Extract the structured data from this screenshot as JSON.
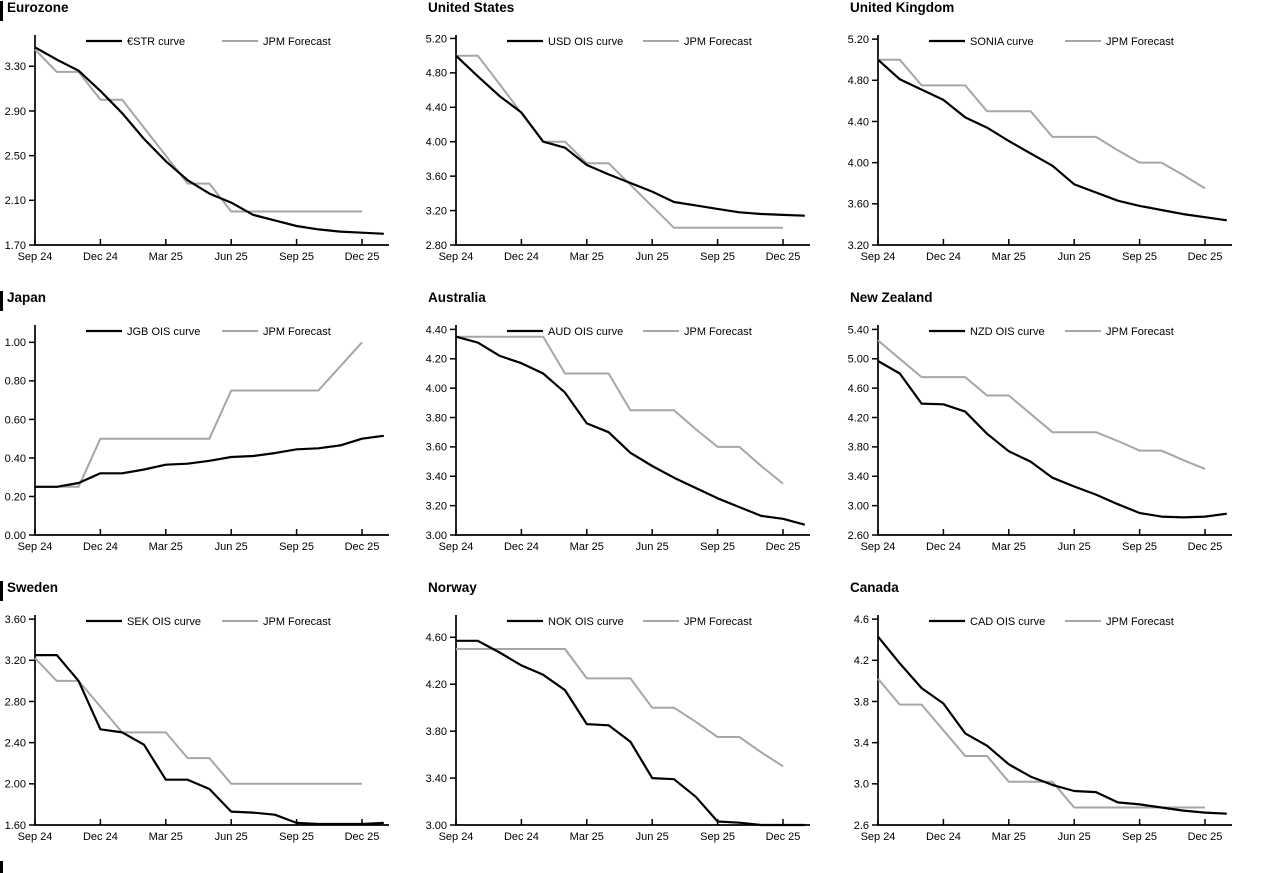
{
  "palette": {
    "black": "#000000",
    "gray": "#a6a6a6"
  },
  "sampling_note": "values are monthly from Sep 24 to Dec 25; OIS curve series carry one extra month of overhang past Dec 25",
  "chart_data": [
    {
      "type": "line",
      "title": "Eurozone",
      "x_tick_labels": [
        "Sep 24",
        "Dec 24",
        "Mar 25",
        "Jun 25",
        "Sep 25",
        "Dec 25"
      ],
      "y_tick_labels": [
        "1.70",
        "2.10",
        "2.50",
        "2.90",
        "3.30"
      ],
      "ylim": [
        1.7,
        3.58
      ],
      "legend_position": "top-center",
      "grid": false,
      "series": [
        {
          "name": "€STR curve",
          "color": "black",
          "values": [
            3.47,
            3.36,
            3.26,
            3.08,
            2.88,
            2.65,
            2.45,
            2.28,
            2.16,
            2.08,
            1.97,
            1.92,
            1.87,
            1.84,
            1.82,
            1.81,
            1.8
          ]
        },
        {
          "name": "JPM Forecast",
          "color": "gray",
          "values": [
            3.45,
            3.25,
            3.25,
            3.0,
            3.0,
            2.75,
            2.5,
            2.25,
            2.25,
            2.0,
            2.0,
            2.0,
            2.0,
            2.0,
            2.0,
            2.0
          ]
        }
      ]
    },
    {
      "type": "line",
      "title": "United States",
      "x_tick_labels": [
        "Sep 24",
        "Dec 24",
        "Mar 25",
        "Jun 25",
        "Sep 25",
        "Dec 25"
      ],
      "y_tick_labels": [
        "2.80",
        "3.20",
        "3.60",
        "4.00",
        "4.40",
        "4.80",
        "5.20"
      ],
      "ylim": [
        2.8,
        5.24
      ],
      "legend_position": "top-center",
      "grid": false,
      "series": [
        {
          "name": "USD OIS curve",
          "color": "black",
          "values": [
            5.0,
            4.76,
            4.53,
            4.34,
            4.0,
            3.93,
            3.73,
            3.62,
            3.52,
            3.42,
            3.3,
            3.26,
            3.22,
            3.18,
            3.16,
            3.15,
            3.14
          ]
        },
        {
          "name": "JPM Forecast",
          "color": "gray",
          "values": [
            5.0,
            5.0,
            4.67,
            4.33,
            4.0,
            4.0,
            3.75,
            3.75,
            3.5,
            3.25,
            3.0,
            3.0,
            3.0,
            3.0,
            3.0,
            3.0
          ]
        }
      ]
    },
    {
      "type": "line",
      "title": "United Kingdom",
      "x_tick_labels": [
        "Sep 24",
        "Dec 24",
        "Mar 25",
        "Jun 25",
        "Sep 25",
        "Dec 25"
      ],
      "y_tick_labels": [
        "3.20",
        "3.60",
        "4.00",
        "4.40",
        "4.80",
        "5.20"
      ],
      "ylim": [
        3.2,
        5.24
      ],
      "legend_position": "top-center",
      "grid": false,
      "series": [
        {
          "name": "SONIA curve",
          "color": "black",
          "values": [
            5.0,
            4.81,
            4.71,
            4.61,
            4.44,
            4.34,
            4.21,
            4.09,
            3.97,
            3.79,
            3.71,
            3.63,
            3.58,
            3.54,
            3.5,
            3.47,
            3.44
          ]
        },
        {
          "name": "JPM Forecast",
          "color": "gray",
          "values": [
            5.0,
            5.0,
            4.75,
            4.75,
            4.75,
            4.5,
            4.5,
            4.5,
            4.25,
            4.25,
            4.25,
            4.12,
            4.0,
            4.0,
            3.88,
            3.75
          ]
        }
      ]
    },
    {
      "type": "line",
      "title": "Japan",
      "x_tick_labels": [
        "Sep 24",
        "Dec 24",
        "Mar 25",
        "Jun 25",
        "Sep 25",
        "Dec 25"
      ],
      "y_tick_labels": [
        "0.00",
        "0.20",
        "0.40",
        "0.60",
        "0.80",
        "1.00"
      ],
      "ylim": [
        0.0,
        1.09
      ],
      "legend_position": "top-center",
      "grid": false,
      "series": [
        {
          "name": "JGB OIS curve",
          "color": "black",
          "values": [
            0.25,
            0.25,
            0.27,
            0.32,
            0.32,
            0.34,
            0.365,
            0.37,
            0.385,
            0.405,
            0.41,
            0.425,
            0.445,
            0.45,
            0.465,
            0.5,
            0.515
          ]
        },
        {
          "name": "JPM Forecast",
          "color": "gray",
          "values": [
            0.25,
            0.25,
            0.25,
            0.5,
            0.5,
            0.5,
            0.5,
            0.5,
            0.5,
            0.75,
            0.75,
            0.75,
            0.75,
            0.75,
            0.875,
            1.0
          ]
        }
      ]
    },
    {
      "type": "line",
      "title": "Australia",
      "x_tick_labels": [
        "Sep 24",
        "Dec 24",
        "Mar 25",
        "Jun 25",
        "Sep 25",
        "Dec 25"
      ],
      "y_tick_labels": [
        "3.00",
        "3.20",
        "3.40",
        "3.60",
        "3.80",
        "4.00",
        "4.20",
        "4.40"
      ],
      "ylim": [
        3.0,
        4.43
      ],
      "legend_position": "top-center",
      "grid": false,
      "series": [
        {
          "name": "AUD OIS curve",
          "color": "black",
          "values": [
            4.35,
            4.31,
            4.22,
            4.17,
            4.1,
            3.97,
            3.76,
            3.7,
            3.56,
            3.47,
            3.39,
            3.32,
            3.25,
            3.19,
            3.13,
            3.11,
            3.07
          ]
        },
        {
          "name": "JPM Forecast",
          "color": "gray",
          "values": [
            4.35,
            4.35,
            4.35,
            4.35,
            4.35,
            4.1,
            4.1,
            4.1,
            3.85,
            3.85,
            3.85,
            3.72,
            3.6,
            3.6,
            3.47,
            3.35
          ]
        }
      ]
    },
    {
      "type": "line",
      "title": "New Zealand",
      "x_tick_labels": [
        "Sep 24",
        "Dec 24",
        "Mar 25",
        "Jun 25",
        "Sep 25",
        "Dec 25"
      ],
      "y_tick_labels": [
        "2.60",
        "3.00",
        "3.40",
        "3.80",
        "4.20",
        "4.60",
        "5.00",
        "5.40"
      ],
      "ylim": [
        2.6,
        5.46
      ],
      "legend_position": "top-center",
      "grid": false,
      "series": [
        {
          "name": "NZD OIS curve",
          "color": "black",
          "values": [
            4.97,
            4.8,
            4.39,
            4.38,
            4.28,
            3.98,
            3.74,
            3.6,
            3.38,
            3.26,
            3.15,
            3.02,
            2.9,
            2.85,
            2.84,
            2.85,
            2.89
          ]
        },
        {
          "name": "JPM Forecast",
          "color": "gray",
          "values": [
            5.25,
            5.0,
            4.75,
            4.75,
            4.75,
            4.5,
            4.5,
            4.25,
            4.0,
            4.0,
            4.0,
            3.88,
            3.75,
            3.75,
            3.62,
            3.5
          ]
        }
      ]
    },
    {
      "type": "line",
      "title": "Sweden",
      "x_tick_labels": [
        "Sep 24",
        "Dec 24",
        "Mar 25",
        "Jun 25",
        "Sep 25",
        "Dec 25"
      ],
      "y_tick_labels": [
        "1.60",
        "2.00",
        "2.40",
        "2.80",
        "3.20",
        "3.60"
      ],
      "ylim": [
        1.6,
        3.64
      ],
      "legend_position": "top-center",
      "grid": false,
      "series": [
        {
          "name": "SEK OIS curve",
          "color": "black",
          "values": [
            3.25,
            3.25,
            3.0,
            2.53,
            2.5,
            2.38,
            2.04,
            2.04,
            1.95,
            1.73,
            1.72,
            1.7,
            1.62,
            1.61,
            1.61,
            1.61,
            1.62
          ]
        },
        {
          "name": "JPM Forecast",
          "color": "gray",
          "values": [
            3.22,
            3.0,
            3.0,
            2.75,
            2.5,
            2.5,
            2.5,
            2.25,
            2.25,
            2.0,
            2.0,
            2.0,
            2.0,
            2.0,
            2.0,
            2.0
          ]
        }
      ]
    },
    {
      "type": "line",
      "title": "Norway",
      "x_tick_labels": [
        "Sep 24",
        "Dec 24",
        "Mar 25",
        "Jun 25",
        "Sep 25",
        "Dec 25"
      ],
      "y_tick_labels": [
        "3.00",
        "3.40",
        "3.80",
        "4.20",
        "4.60"
      ],
      "ylim": [
        3.0,
        4.79
      ],
      "legend_position": "top-center",
      "grid": false,
      "series": [
        {
          "name": "NOK OIS curve",
          "color": "black",
          "values": [
            4.57,
            4.57,
            4.47,
            4.36,
            4.28,
            4.15,
            3.86,
            3.85,
            3.71,
            3.4,
            3.39,
            3.24,
            3.03,
            3.02,
            3.0,
            3.0,
            3.0
          ]
        },
        {
          "name": "JPM Forecast",
          "color": "gray",
          "values": [
            4.5,
            4.5,
            4.5,
            4.5,
            4.5,
            4.5,
            4.25,
            4.25,
            4.25,
            4.0,
            4.0,
            3.88,
            3.75,
            3.75,
            3.62,
            3.5
          ]
        }
      ]
    },
    {
      "type": "line",
      "title": "Canada",
      "x_tick_labels": [
        "Sep 24",
        "Dec 24",
        "Mar 25",
        "Jun 25",
        "Sep 25",
        "Dec 25"
      ],
      "y_tick_labels": [
        "2.6",
        "3.0",
        "3.4",
        "3.8",
        "4.2",
        "4.6"
      ],
      "ylim": [
        2.6,
        4.64
      ],
      "legend_position": "top-center",
      "grid": false,
      "series": [
        {
          "name": "CAD OIS curve",
          "color": "black",
          "values": [
            4.43,
            4.17,
            3.93,
            3.78,
            3.49,
            3.37,
            3.19,
            3.07,
            2.99,
            2.93,
            2.92,
            2.82,
            2.8,
            2.77,
            2.74,
            2.72,
            2.71
          ]
        },
        {
          "name": "JPM Forecast",
          "color": "gray",
          "values": [
            4.02,
            3.77,
            3.77,
            3.52,
            3.27,
            3.27,
            3.02,
            3.02,
            3.02,
            2.77,
            2.77,
            2.77,
            2.77,
            2.77,
            2.77,
            2.77
          ]
        }
      ]
    }
  ]
}
